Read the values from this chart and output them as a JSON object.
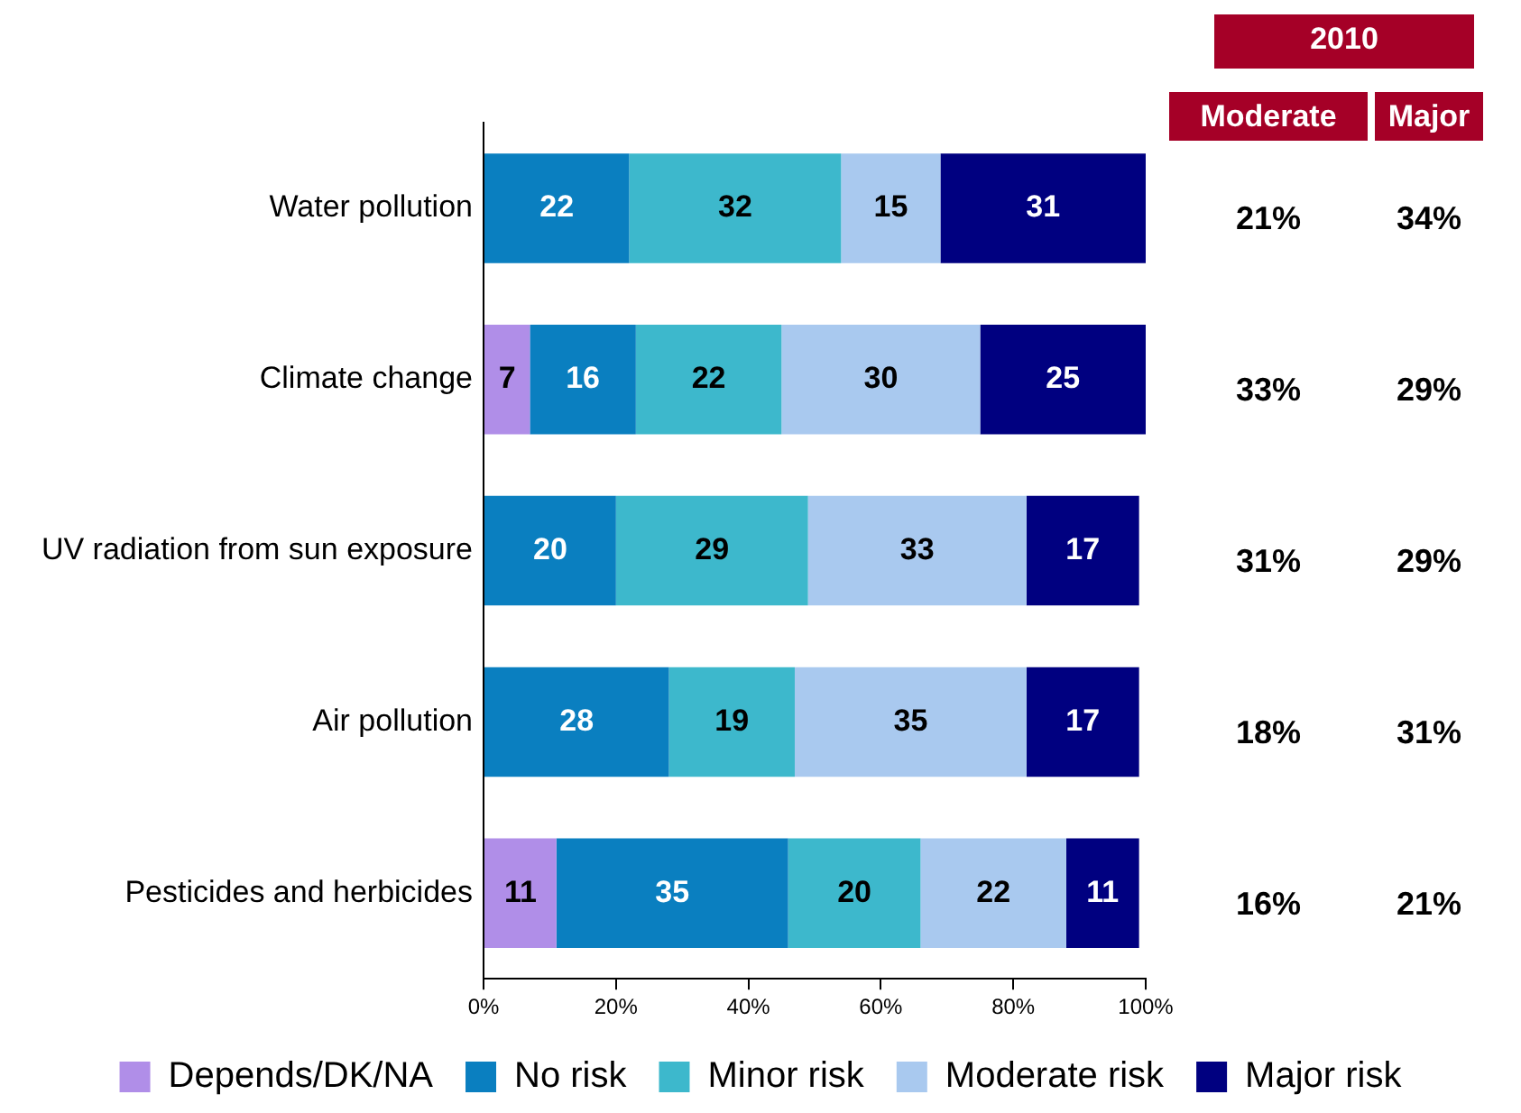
{
  "chart_data": [
    {
      "type": "bar",
      "orientation": "horizontal",
      "stacked": true,
      "categories": [
        "Water pollution",
        "Climate change",
        "UV radiation from sun exposure",
        "Air pollution",
        "Pesticides and herbicides"
      ],
      "series": [
        {
          "name": "Depends/DK/NA",
          "color": "#b08ee8",
          "values": [
            null,
            7,
            null,
            null,
            11
          ]
        },
        {
          "name": "No risk",
          "color": "#0a7fc0",
          "values": [
            22,
            16,
            20,
            28,
            35
          ]
        },
        {
          "name": "Minor risk",
          "color": "#3db8cc",
          "values": [
            32,
            22,
            29,
            19,
            20
          ]
        },
        {
          "name": "Moderate risk",
          "color": "#a9c9ef",
          "values": [
            15,
            30,
            33,
            35,
            22
          ]
        },
        {
          "name": "Major risk",
          "color": "#000080",
          "values": [
            31,
            25,
            17,
            17,
            11
          ]
        }
      ],
      "xlim": [
        0,
        100
      ],
      "xticks": [
        {
          "value": 0,
          "label": "0%"
        },
        {
          "value": 20,
          "label": "20%"
        },
        {
          "value": 40,
          "label": "40%"
        },
        {
          "value": 60,
          "label": "60%"
        },
        {
          "value": 80,
          "label": "80%"
        },
        {
          "value": 100,
          "label": "100%"
        }
      ],
      "data_labels": true,
      "legend": "bottom",
      "grid": false
    },
    {
      "type": "other",
      "title": "2010",
      "color": "#a50027",
      "categories": [
        "Moderate",
        "Major"
      ],
      "annotations": [
        "21%",
        "34%",
        "33%",
        "29%",
        "31%",
        "29%",
        "18%",
        "31%",
        "16%",
        "21%"
      ]
    }
  ]
}
